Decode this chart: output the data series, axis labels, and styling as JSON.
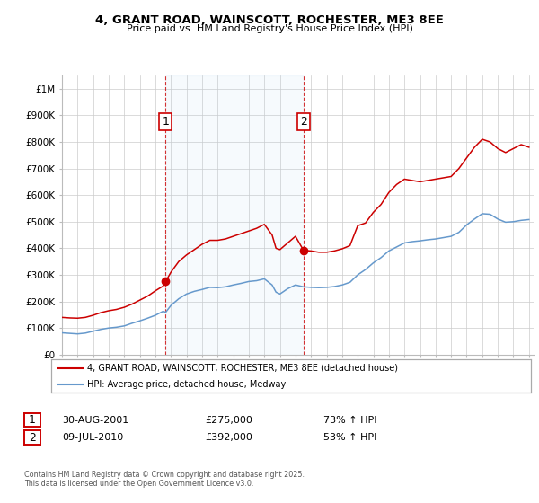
{
  "title": "4, GRANT ROAD, WAINSCOTT, ROCHESTER, ME3 8EE",
  "subtitle": "Price paid vs. HM Land Registry's House Price Index (HPI)",
  "legend_line1": "4, GRANT ROAD, WAINSCOTT, ROCHESTER, ME3 8EE (detached house)",
  "legend_line2": "HPI: Average price, detached house, Medway",
  "red_color": "#cc0000",
  "blue_color": "#6699cc",
  "sale1_date": "30-AUG-2001",
  "sale1_price": 275000,
  "sale1_pct": "73% ↑ HPI",
  "sale2_date": "09-JUL-2010",
  "sale2_price": 392000,
  "sale2_pct": "53% ↑ HPI",
  "footnote": "Contains HM Land Registry data © Crown copyright and database right 2025.\nThis data is licensed under the Open Government Licence v3.0.",
  "ylim_max": 1050000,
  "yticks": [
    0,
    100000,
    200000,
    300000,
    400000,
    500000,
    600000,
    700000,
    800000,
    900000,
    1000000
  ],
  "ytick_labels": [
    "£0",
    "£100K",
    "£200K",
    "£300K",
    "£400K",
    "£500K",
    "£600K",
    "£700K",
    "£800K",
    "£900K",
    "£1M"
  ],
  "sale1_year": 2001.66,
  "sale2_year": 2010.52,
  "xmin": 1995.0,
  "xmax": 2025.3,
  "hpi_red": [
    [
      1995.0,
      140000
    ],
    [
      1995.5,
      138000
    ],
    [
      1996.0,
      137000
    ],
    [
      1996.5,
      140000
    ],
    [
      1997.0,
      148000
    ],
    [
      1997.5,
      158000
    ],
    [
      1998.0,
      165000
    ],
    [
      1998.5,
      170000
    ],
    [
      1999.0,
      178000
    ],
    [
      1999.5,
      190000
    ],
    [
      2000.0,
      205000
    ],
    [
      2000.5,
      220000
    ],
    [
      2001.0,
      240000
    ],
    [
      2001.5,
      258000
    ],
    [
      2001.66,
      275000
    ],
    [
      2002.0,
      310000
    ],
    [
      2002.5,
      350000
    ],
    [
      2003.0,
      375000
    ],
    [
      2003.5,
      395000
    ],
    [
      2004.0,
      415000
    ],
    [
      2004.5,
      430000
    ],
    [
      2005.0,
      430000
    ],
    [
      2005.5,
      435000
    ],
    [
      2006.0,
      445000
    ],
    [
      2006.5,
      455000
    ],
    [
      2007.0,
      465000
    ],
    [
      2007.5,
      475000
    ],
    [
      2008.0,
      490000
    ],
    [
      2008.5,
      450000
    ],
    [
      2008.75,
      400000
    ],
    [
      2009.0,
      395000
    ],
    [
      2009.5,
      420000
    ],
    [
      2010.0,
      445000
    ],
    [
      2010.52,
      392000
    ],
    [
      2011.0,
      390000
    ],
    [
      2011.5,
      385000
    ],
    [
      2012.0,
      385000
    ],
    [
      2012.5,
      390000
    ],
    [
      2013.0,
      398000
    ],
    [
      2013.5,
      410000
    ],
    [
      2014.0,
      485000
    ],
    [
      2014.5,
      495000
    ],
    [
      2015.0,
      535000
    ],
    [
      2015.5,
      565000
    ],
    [
      2016.0,
      610000
    ],
    [
      2016.5,
      640000
    ],
    [
      2017.0,
      660000
    ],
    [
      2017.5,
      655000
    ],
    [
      2018.0,
      650000
    ],
    [
      2018.5,
      655000
    ],
    [
      2019.0,
      660000
    ],
    [
      2019.5,
      665000
    ],
    [
      2020.0,
      670000
    ],
    [
      2020.5,
      700000
    ],
    [
      2021.0,
      740000
    ],
    [
      2021.5,
      780000
    ],
    [
      2022.0,
      810000
    ],
    [
      2022.5,
      800000
    ],
    [
      2023.0,
      775000
    ],
    [
      2023.5,
      760000
    ],
    [
      2024.0,
      775000
    ],
    [
      2024.5,
      790000
    ],
    [
      2025.0,
      780000
    ]
  ],
  "hpi_blue": [
    [
      1995.0,
      82000
    ],
    [
      1995.5,
      80000
    ],
    [
      1996.0,
      78000
    ],
    [
      1996.5,
      81000
    ],
    [
      1997.0,
      88000
    ],
    [
      1997.5,
      95000
    ],
    [
      1998.0,
      100000
    ],
    [
      1998.5,
      103000
    ],
    [
      1999.0,
      108000
    ],
    [
      1999.5,
      118000
    ],
    [
      2000.0,
      127000
    ],
    [
      2000.5,
      137000
    ],
    [
      2001.0,
      148000
    ],
    [
      2001.5,
      163000
    ],
    [
      2001.66,
      159000
    ],
    [
      2002.0,
      185000
    ],
    [
      2002.5,
      210000
    ],
    [
      2003.0,
      228000
    ],
    [
      2003.5,
      238000
    ],
    [
      2004.0,
      245000
    ],
    [
      2004.5,
      253000
    ],
    [
      2005.0,
      252000
    ],
    [
      2005.5,
      255000
    ],
    [
      2006.0,
      262000
    ],
    [
      2006.5,
      268000
    ],
    [
      2007.0,
      275000
    ],
    [
      2007.5,
      278000
    ],
    [
      2008.0,
      285000
    ],
    [
      2008.5,
      262000
    ],
    [
      2008.75,
      235000
    ],
    [
      2009.0,
      228000
    ],
    [
      2009.5,
      248000
    ],
    [
      2010.0,
      262000
    ],
    [
      2010.52,
      255000
    ],
    [
      2011.0,
      253000
    ],
    [
      2011.5,
      252000
    ],
    [
      2012.0,
      253000
    ],
    [
      2012.5,
      256000
    ],
    [
      2013.0,
      262000
    ],
    [
      2013.5,
      272000
    ],
    [
      2014.0,
      300000
    ],
    [
      2014.5,
      320000
    ],
    [
      2015.0,
      345000
    ],
    [
      2015.5,
      365000
    ],
    [
      2016.0,
      390000
    ],
    [
      2016.5,
      405000
    ],
    [
      2017.0,
      420000
    ],
    [
      2017.5,
      425000
    ],
    [
      2018.0,
      428000
    ],
    [
      2018.5,
      432000
    ],
    [
      2019.0,
      435000
    ],
    [
      2019.5,
      440000
    ],
    [
      2020.0,
      445000
    ],
    [
      2020.5,
      460000
    ],
    [
      2021.0,
      488000
    ],
    [
      2021.5,
      510000
    ],
    [
      2022.0,
      530000
    ],
    [
      2022.5,
      528000
    ],
    [
      2023.0,
      510000
    ],
    [
      2023.5,
      498000
    ],
    [
      2024.0,
      500000
    ],
    [
      2024.5,
      505000
    ],
    [
      2025.0,
      508000
    ]
  ]
}
